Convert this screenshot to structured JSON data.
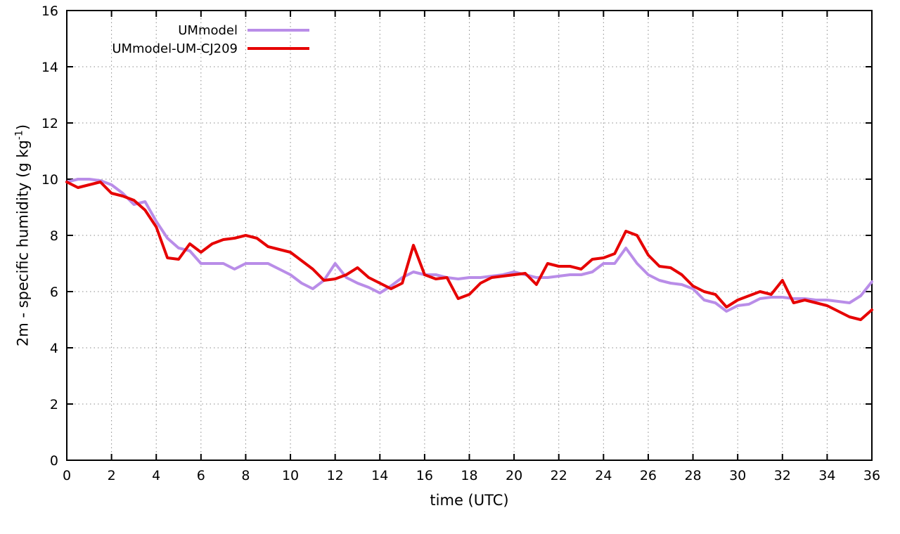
{
  "chart_data": {
    "type": "line",
    "title": "",
    "xlabel": "time (UTC)",
    "ylabel": {
      "pre": "2m - specific humidity (g kg",
      "sup": "-1",
      "post": ")"
    },
    "xlim": [
      0,
      36
    ],
    "ylim": [
      0,
      16
    ],
    "x_ticks": [
      0,
      2,
      4,
      6,
      8,
      10,
      12,
      14,
      16,
      18,
      20,
      22,
      24,
      26,
      28,
      30,
      32,
      34,
      36
    ],
    "y_ticks": [
      0,
      2,
      4,
      6,
      8,
      10,
      12,
      14,
      16
    ],
    "grid": true,
    "grid_style": "dotted",
    "grid_color": "#8a8a8a",
    "legend_position": "top-left-inside",
    "x": [
      0,
      0.5,
      1,
      1.5,
      2,
      2.5,
      3,
      3.5,
      4,
      4.5,
      5,
      5.5,
      6,
      6.5,
      7,
      7.5,
      8,
      8.5,
      9,
      9.5,
      10,
      10.5,
      11,
      11.5,
      12,
      12.5,
      13,
      13.5,
      14,
      14.5,
      15,
      15.5,
      16,
      16.5,
      17,
      17.5,
      18,
      18.5,
      19,
      19.5,
      20,
      20.5,
      21,
      21.5,
      22,
      22.5,
      23,
      23.5,
      24,
      24.5,
      25,
      25.5,
      26,
      26.5,
      27,
      27.5,
      28,
      28.5,
      29,
      29.5,
      30,
      30.5,
      31,
      31.5,
      32,
      32.5,
      33,
      33.5,
      34,
      34.5,
      35,
      35.5,
      36
    ],
    "series": [
      {
        "name": "UMmodel",
        "color": "#b98de8",
        "values": [
          9.9,
          10.0,
          10.0,
          9.95,
          9.8,
          9.5,
          9.1,
          9.2,
          8.5,
          7.9,
          7.55,
          7.45,
          7.0,
          7.0,
          7.0,
          6.8,
          7.0,
          7.0,
          7.0,
          6.8,
          6.6,
          6.3,
          6.1,
          6.4,
          7.0,
          6.5,
          6.3,
          6.15,
          5.95,
          6.2,
          6.5,
          6.7,
          6.6,
          6.6,
          6.5,
          6.45,
          6.5,
          6.5,
          6.55,
          6.6,
          6.7,
          6.6,
          6.5,
          6.5,
          6.55,
          6.6,
          6.6,
          6.7,
          7.0,
          7.0,
          7.55,
          7.0,
          6.6,
          6.4,
          6.3,
          6.25,
          6.1,
          5.7,
          5.6,
          5.3,
          5.5,
          5.55,
          5.75,
          5.8,
          5.8,
          5.75,
          5.75,
          5.7,
          5.7,
          5.65,
          5.6,
          5.85,
          6.35
        ]
      },
      {
        "name": "UMmodel-UM-CJ209",
        "color": "#e60000",
        "values": [
          9.9,
          9.7,
          9.8,
          9.9,
          9.5,
          9.4,
          9.25,
          8.9,
          8.3,
          7.2,
          7.15,
          7.7,
          7.4,
          7.7,
          7.85,
          7.9,
          8.0,
          7.9,
          7.6,
          7.5,
          7.4,
          7.1,
          6.8,
          6.4,
          6.45,
          6.6,
          6.85,
          6.5,
          6.3,
          6.1,
          6.3,
          7.65,
          6.6,
          6.45,
          6.5,
          5.75,
          5.9,
          6.3,
          6.5,
          6.55,
          6.6,
          6.65,
          6.25,
          7.0,
          6.9,
          6.9,
          6.8,
          7.15,
          7.2,
          7.35,
          8.15,
          8.0,
          7.3,
          6.9,
          6.85,
          6.6,
          6.2,
          6.0,
          5.9,
          5.45,
          5.7,
          5.85,
          6.0,
          5.9,
          6.4,
          5.6,
          5.7,
          5.6,
          5.5,
          5.3,
          5.1,
          5.0,
          5.35
        ]
      }
    ]
  }
}
